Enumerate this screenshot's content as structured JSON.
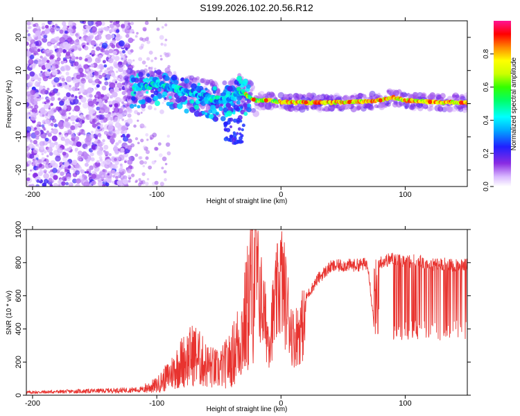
{
  "title": "S199.2026.102.20.56.R12",
  "colors": {
    "signal": "#e8332f",
    "ridge_low": "#7b2cf2",
    "ridge_high": "#ff2a2a"
  },
  "chart_data": [
    {
      "type": "heatmap",
      "title": "S199.2026.102.20.56.R12",
      "xlabel": "Height of straight line (km)",
      "ylabel": "Frequency (Hz)",
      "xlim": [
        -205,
        150
      ],
      "ylim": [
        -25,
        25
      ],
      "xticks": [
        -200,
        -100,
        0,
        100
      ],
      "yticks": [
        -20,
        -10,
        0,
        10,
        20
      ],
      "ridge": {
        "x": [
          -120,
          -110,
          -100,
          -90,
          -80,
          -70,
          -60,
          -50,
          -40,
          -35,
          -30,
          -25,
          -20,
          -10,
          0,
          20,
          40,
          60,
          80,
          90,
          100,
          120,
          150
        ],
        "y": [
          5,
          5,
          6,
          5,
          4,
          3,
          2,
          1,
          2,
          4,
          3,
          2,
          1,
          1,
          0.5,
          0.3,
          0.3,
          0.5,
          1,
          2,
          1,
          0.5,
          0.3
        ]
      },
      "colorbar": {
        "label": "Normalized spectral amplitude",
        "range": [
          0,
          1
        ],
        "ticks": [
          "0.0",
          "0.2",
          "0.4",
          "0.6",
          "0.8"
        ]
      }
    },
    {
      "type": "line",
      "xlabel": "Height of straight line (km)",
      "ylabel": "SNR (10 * v/v)",
      "xlim": [
        -205,
        150
      ],
      "ylim": [
        0,
        1000
      ],
      "xticks": [
        -200,
        -100,
        0,
        100
      ],
      "yticks": [
        0,
        200,
        400,
        600,
        800,
        1000
      ],
      "series": [
        {
          "name": "SNR",
          "x": [
            -205,
            -150,
            -110,
            -100,
            -90,
            -80,
            -70,
            -60,
            -50,
            -40,
            -30,
            -25,
            -20,
            -10,
            0,
            10,
            20,
            30,
            40,
            50,
            60,
            70,
            76,
            78,
            80,
            90,
            100,
            110,
            120,
            130,
            140,
            150
          ],
          "y": [
            20,
            30,
            40,
            60,
            120,
            200,
            250,
            180,
            150,
            220,
            400,
            600,
            980,
            450,
            950,
            450,
            600,
            720,
            790,
            800,
            800,
            810,
            350,
            820,
            820,
            840,
            820,
            830,
            800,
            810,
            800,
            800
          ]
        }
      ]
    }
  ]
}
